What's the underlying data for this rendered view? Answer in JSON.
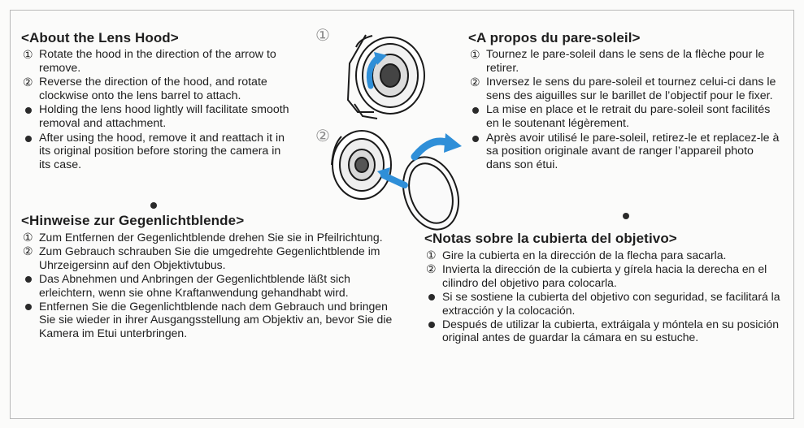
{
  "english": {
    "title": "<About the Lens Hood>",
    "items": [
      {
        "marker": "①",
        "text": "Rotate the hood in the direction of the arrow to remove."
      },
      {
        "marker": "②",
        "text": "Reverse the direction of the hood, and rotate clockwise onto the lens barrel to attach."
      },
      {
        "marker": "dot",
        "text": "Holding the lens hood lightly will facilitate smooth removal and attachment."
      },
      {
        "marker": "dot",
        "text": "After using the hood, remove it and reattach it in its original position before storing the camera in its case."
      }
    ]
  },
  "french": {
    "title": "<A propos du pare-soleil>",
    "items": [
      {
        "marker": "①",
        "text": "Tournez le pare-soleil dans le sens de la flèche pour le retirer."
      },
      {
        "marker": "②",
        "text": "Inversez le sens du pare-soleil et tournez celui-ci dans le sens des aiguilles sur le barillet de l’objectif pour le fixer."
      },
      {
        "marker": "dot",
        "text": "La mise en place et le retrait du pare-soleil sont facilités en le soutenant légèrement."
      },
      {
        "marker": "dot",
        "text": "Après avoir utilisé le pare-soleil, retirez-le et replacez-le à sa position originale avant de ranger l’appareil photo dans son étui."
      }
    ]
  },
  "german": {
    "title": "<Hinweise zur Gegenlichtblende>",
    "items": [
      {
        "marker": "①",
        "text": "Zum Entfernen der Gegenlichtblende drehen Sie sie in Pfeilrichtung."
      },
      {
        "marker": "②",
        "text": "Zum Gebrauch schrauben Sie die umgedrehte Gegenlichtblende im Uhrzeigersinn auf den Objektivtubus."
      },
      {
        "marker": "dot",
        "text": "Das Abnehmen und Anbringen der Gegenlichtblende läßt sich erleichtern, wenn sie ohne Kraftanwendung gehandhabt wird."
      },
      {
        "marker": "dot",
        "text": "Entfernen Sie die Gegenlichtblende nach dem Gebrauch und bringen Sie sie wieder in ihrer Ausgangsstellung am Objektiv an, bevor Sie die Kamera im Etui unterbringen."
      }
    ]
  },
  "spanish": {
    "title": "<Notas sobre la cubierta del objetivo>",
    "items": [
      {
        "marker": "①",
        "text": "Gire la cubierta en la dirección de la flecha para sacarla."
      },
      {
        "marker": "②",
        "text": "Invierta la dirección de la cubierta y gírela hacia la derecha en el cilindro del objetivo para colocarla."
      },
      {
        "marker": "dot",
        "text": "Si se sostiene la cubierta del objetivo con seguridad, se facilitará la extracción y la colocación."
      },
      {
        "marker": "dot",
        "text": "Después de utilizar la cubierta, extráigala y móntela en su posición original antes de guardar la cámara en su estuche."
      }
    ]
  },
  "illustration": {
    "step1_label": "①",
    "step2_label": "②",
    "arrow_color": "#2f8fd8",
    "line_color": "#1a1a1a"
  }
}
